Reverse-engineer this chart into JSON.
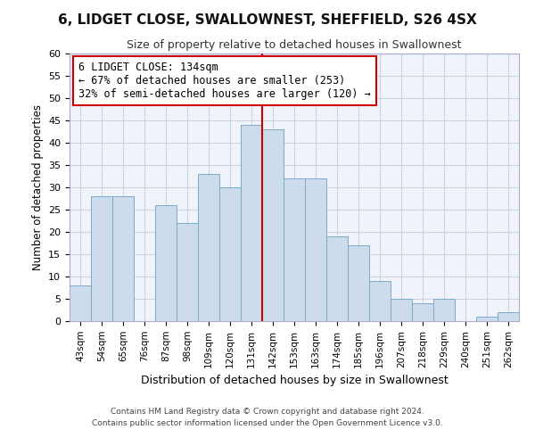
{
  "title": "6, LIDGET CLOSE, SWALLOWNEST, SHEFFIELD, S26 4SX",
  "subtitle": "Size of property relative to detached houses in Swallownest",
  "xlabel": "Distribution of detached houses by size in Swallownest",
  "ylabel": "Number of detached properties",
  "categories": [
    "43sqm",
    "54sqm",
    "65sqm",
    "76sqm",
    "87sqm",
    "98sqm",
    "109sqm",
    "120sqm",
    "131sqm",
    "142sqm",
    "153sqm",
    "163sqm",
    "174sqm",
    "185sqm",
    "196sqm",
    "207sqm",
    "218sqm",
    "229sqm",
    "240sqm",
    "251sqm",
    "262sqm"
  ],
  "bar_heights": [
    8,
    28,
    28,
    0,
    26,
    22,
    33,
    30,
    44,
    43,
    32,
    32,
    19,
    17,
    9,
    5,
    4,
    5,
    0,
    1,
    2
  ],
  "bar_color": "#ccdcec",
  "bar_edge_color": "#7aaac8",
  "vline_color": "#cc0000",
  "vline_idx": 8,
  "annotation_text": "6 LIDGET CLOSE: 134sqm\n← 67% of detached houses are smaller (253)\n32% of semi-detached houses are larger (120) →",
  "annotation_box_color": "#ffffff",
  "annotation_box_edge": "#cc0000",
  "ylim": [
    0,
    60
  ],
  "yticks": [
    0,
    5,
    10,
    15,
    20,
    25,
    30,
    35,
    40,
    45,
    50,
    55,
    60
  ],
  "footer1": "Contains HM Land Registry data © Crown copyright and database right 2024.",
  "footer2": "Contains public sector information licensed under the Open Government Licence v3.0.",
  "bg_color": "#f0f4fa",
  "grid_color": "#c8d4e4",
  "title_fontsize": 11,
  "subtitle_fontsize": 9
}
